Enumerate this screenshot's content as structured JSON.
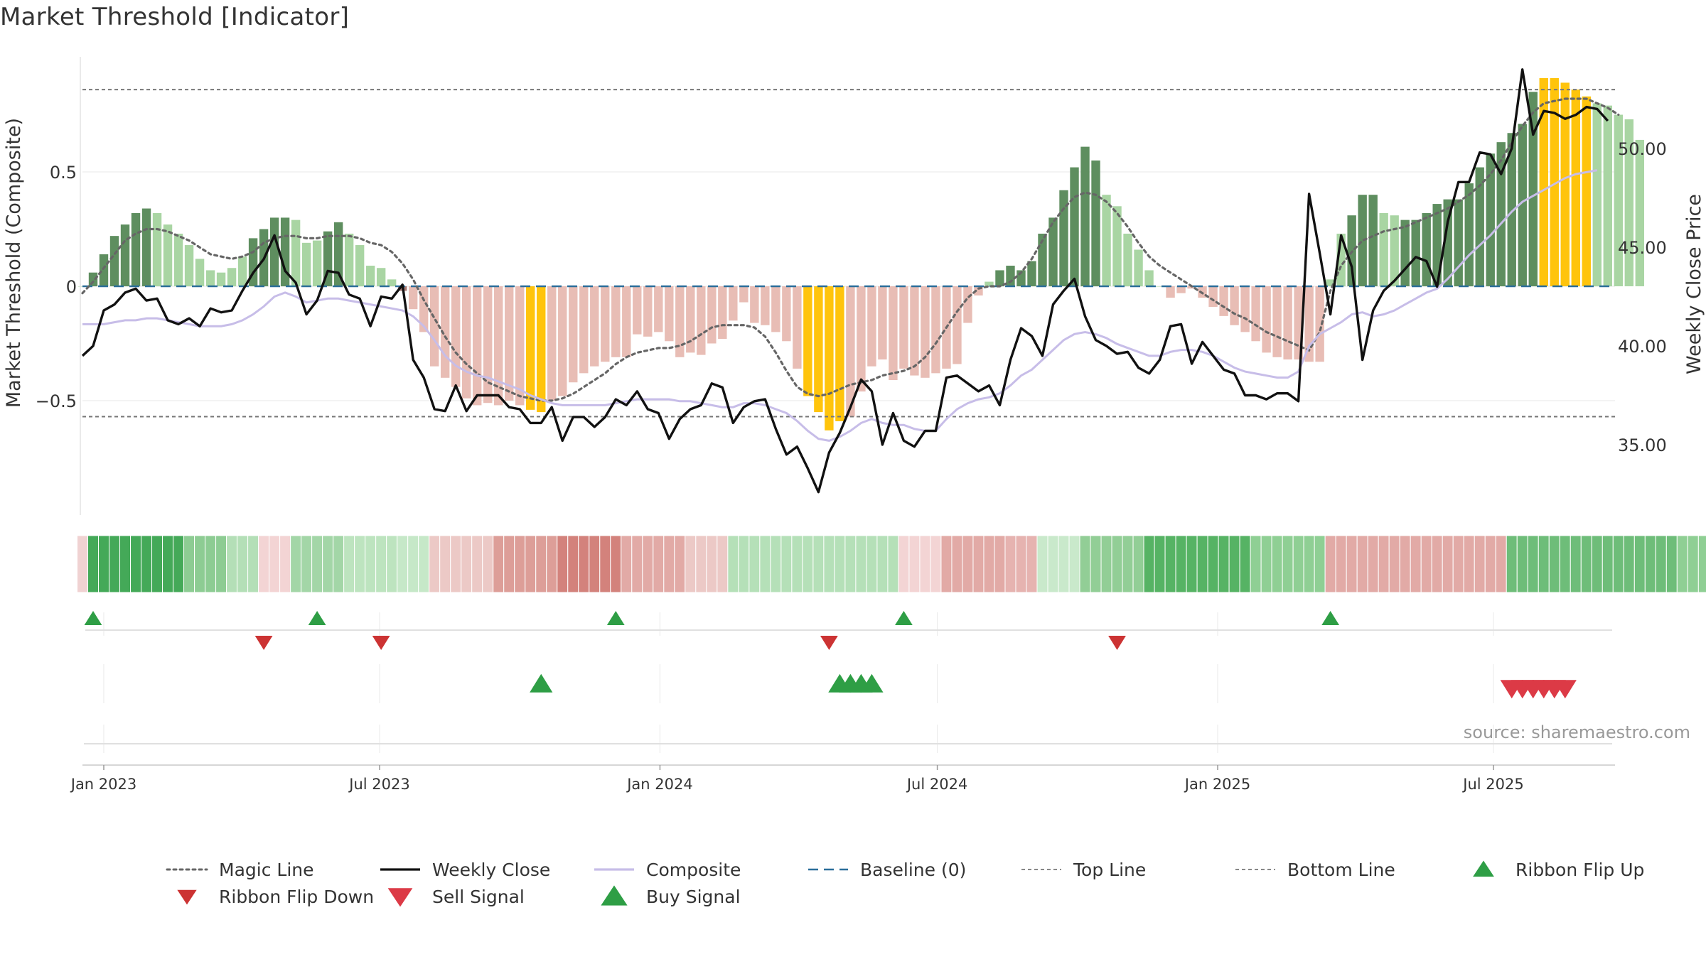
{
  "title": "Market Threshold [Indicator]",
  "source": "source: sharemaestro.com",
  "colors": {
    "strong_pos": "#5e8e5f",
    "weak_pos": "#a9d5a3",
    "strong_neg": "#a87a74",
    "weak_neg": "#e8bdb5",
    "extreme": "#ffc40c",
    "close": "#111111",
    "composite": "#c7bde8",
    "magic": "#666666",
    "baseline": "#2b6e9a",
    "threshold": "#777777",
    "buy": "#2e9e45",
    "sell_flip": "#cc3333",
    "sell": "#dc3a46"
  },
  "chart_data": {
    "type": "bar",
    "title": "Market Threshold [Indicator]",
    "ylabel": "Market Threshold (Composite)",
    "y2label": "Weekly Close Price",
    "ylim": [
      -1.0,
      1.02
    ],
    "y2lim": [
      32.0,
      55.2
    ],
    "y_ticks": [
      "0.5",
      "0",
      "−0.5"
    ],
    "y2_ticks": [
      "50.00",
      "45.00",
      "40.00",
      "35.00"
    ],
    "x_ticks": [
      "Jan 2023",
      "Jul 2023",
      "Jan 2024",
      "Jul 2024",
      "Jan 2025",
      "Jul 2025"
    ],
    "x_tick_dates": [
      "2023-01-01",
      "2023-07-01",
      "2024-01-01",
      "2024-07-01",
      "2025-01-01",
      "2025-07-01"
    ],
    "x_start": "2022-12-18",
    "weekly": {
      "composite": [
        0.0,
        0.06,
        0.14,
        0.22,
        0.27,
        0.32,
        0.34,
        0.32,
        0.27,
        0.23,
        0.18,
        0.12,
        0.07,
        0.06,
        0.08,
        0.13,
        0.21,
        0.25,
        0.3,
        0.3,
        0.29,
        0.19,
        0.2,
        0.24,
        0.28,
        0.23,
        0.18,
        0.09,
        0.08,
        0.03,
        -0.02,
        -0.1,
        -0.2,
        -0.35,
        -0.4,
        -0.44,
        -0.49,
        -0.52,
        -0.51,
        -0.52,
        -0.5,
        -0.52,
        -0.54,
        -0.55,
        -0.5,
        -0.48,
        -0.42,
        -0.38,
        -0.35,
        -0.33,
        -0.31,
        -0.31,
        -0.21,
        -0.22,
        -0.2,
        -0.24,
        -0.31,
        -0.29,
        -0.3,
        -0.25,
        -0.23,
        -0.15,
        -0.07,
        -0.16,
        -0.17,
        -0.2,
        -0.24,
        -0.36,
        -0.48,
        -0.55,
        -0.63,
        -0.59,
        -0.57,
        -0.46,
        -0.35,
        -0.32,
        -0.41,
        -0.36,
        -0.39,
        -0.4,
        -0.38,
        -0.36,
        -0.34,
        -0.16,
        -0.04,
        0.02,
        0.07,
        0.09,
        0.07,
        0.11,
        0.23,
        0.3,
        0.42,
        0.52,
        0.61,
        0.55,
        0.4,
        0.35,
        0.23,
        0.16,
        0.07,
        0.0,
        -0.05,
        -0.03,
        -0.01,
        -0.05,
        -0.09,
        -0.13,
        -0.17,
        -0.2,
        -0.24,
        -0.29,
        -0.31,
        -0.32,
        -0.32,
        -0.33,
        -0.33,
        0.03,
        0.23,
        0.31,
        0.4,
        0.4,
        0.32,
        0.31,
        0.29,
        0.29,
        0.32,
        0.36,
        0.38,
        0.38,
        0.45,
        0.52,
        0.58,
        0.63,
        0.67,
        0.71,
        0.85,
        0.91,
        0.91,
        0.89,
        0.86,
        0.83,
        0.8,
        0.79,
        0.75,
        0.73,
        0.64
      ],
      "close": [
        39.5,
        40.0,
        41.8,
        42.1,
        42.7,
        42.9,
        42.3,
        42.4,
        41.3,
        41.1,
        41.4,
        41.0,
        41.9,
        41.7,
        41.8,
        42.8,
        43.7,
        44.4,
        45.6,
        43.8,
        43.2,
        41.6,
        42.3,
        43.8,
        43.7,
        42.6,
        42.4,
        41.0,
        42.5,
        42.4,
        43.1,
        39.3,
        38.4,
        36.8,
        36.7,
        38.0,
        36.7,
        37.5,
        37.5,
        37.5,
        36.9,
        36.8,
        36.1,
        36.1,
        36.9,
        35.2,
        36.4,
        36.4,
        35.9,
        36.4,
        37.3,
        37.0,
        37.7,
        36.8,
        36.6,
        35.3,
        36.3,
        36.8,
        37.0,
        38.1,
        37.9,
        36.1,
        36.9,
        37.2,
        37.3,
        35.8,
        34.5,
        34.9,
        33.8,
        32.6,
        34.6,
        35.6,
        36.9,
        38.3,
        37.7,
        35.0,
        36.6,
        35.2,
        34.9,
        35.7,
        35.7,
        38.4,
        38.5,
        38.1,
        37.7,
        38.0,
        37.0,
        39.3,
        40.9,
        40.5,
        39.5,
        42.1,
        42.8,
        43.4,
        41.5,
        40.3,
        40.0,
        39.6,
        39.7,
        38.9,
        38.6,
        39.3,
        41.0,
        41.1,
        39.1,
        40.2,
        39.5,
        38.8,
        38.6,
        37.5,
        37.5,
        37.3,
        37.6,
        37.6,
        37.2,
        47.7,
        44.7,
        41.6,
        45.6,
        44.0,
        39.3,
        41.8,
        42.8,
        43.3,
        43.9,
        44.5,
        44.3,
        43.0,
        46.3,
        48.3,
        48.3,
        49.8,
        49.7,
        48.7,
        50.0,
        54.0,
        50.7,
        51.9,
        51.8,
        51.5,
        51.7,
        52.1,
        52.0,
        51.4
      ],
      "composite_smooth": [
        41.1,
        41.1,
        41.1,
        41.2,
        41.3,
        41.3,
        41.4,
        41.4,
        41.3,
        41.2,
        41.1,
        41.0,
        41.0,
        41.0,
        41.1,
        41.3,
        41.6,
        42.0,
        42.5,
        42.7,
        42.5,
        42.2,
        42.3,
        42.4,
        42.4,
        42.3,
        42.2,
        42.1,
        42.0,
        41.9,
        41.8,
        41.5,
        41.0,
        40.3,
        39.5,
        39.0,
        38.7,
        38.5,
        38.4,
        38.2,
        38.0,
        37.8,
        37.5,
        37.3,
        37.1,
        37.0,
        37.0,
        37.0,
        37.0,
        37.0,
        37.1,
        37.2,
        37.3,
        37.3,
        37.3,
        37.3,
        37.2,
        37.2,
        37.1,
        37.0,
        36.9,
        36.9,
        37.1,
        37.1,
        37.0,
        36.8,
        36.6,
        36.2,
        35.7,
        35.3,
        35.2,
        35.4,
        35.7,
        36.1,
        36.3,
        36.1,
        36.0,
        36.0,
        35.8,
        35.7,
        35.7,
        36.3,
        36.8,
        37.1,
        37.3,
        37.4,
        37.6,
        38.0,
        38.5,
        38.8,
        39.3,
        39.8,
        40.3,
        40.6,
        40.7,
        40.6,
        40.4,
        40.1,
        39.9,
        39.7,
        39.5,
        39.5,
        39.7,
        39.8,
        39.8,
        39.7,
        39.5,
        39.2,
        38.9,
        38.7,
        38.6,
        38.5,
        38.4,
        38.4,
        38.7,
        40.0,
        40.6,
        40.9,
        41.2,
        41.6,
        41.7,
        41.5,
        41.6,
        41.8,
        42.1,
        42.4,
        42.7,
        42.9,
        43.4,
        44.0,
        44.6,
        45.1,
        45.6,
        46.2,
        46.8,
        47.3,
        47.6,
        47.9,
        48.2,
        48.5,
        48.7,
        48.8,
        48.9
      ],
      "magic": [
        -0.03,
        0.02,
        0.08,
        0.14,
        0.2,
        0.23,
        0.25,
        0.25,
        0.24,
        0.22,
        0.2,
        0.17,
        0.14,
        0.13,
        0.12,
        0.13,
        0.15,
        0.19,
        0.21,
        0.22,
        0.22,
        0.21,
        0.21,
        0.22,
        0.22,
        0.22,
        0.21,
        0.19,
        0.18,
        0.15,
        0.1,
        0.03,
        -0.06,
        -0.14,
        -0.22,
        -0.29,
        -0.34,
        -0.38,
        -0.42,
        -0.44,
        -0.46,
        -0.48,
        -0.49,
        -0.5,
        -0.5,
        -0.49,
        -0.47,
        -0.44,
        -0.41,
        -0.38,
        -0.34,
        -0.31,
        -0.29,
        -0.28,
        -0.27,
        -0.27,
        -0.26,
        -0.24,
        -0.21,
        -0.18,
        -0.17,
        -0.17,
        -0.17,
        -0.18,
        -0.22,
        -0.29,
        -0.37,
        -0.44,
        -0.47,
        -0.48,
        -0.47,
        -0.45,
        -0.43,
        -0.42,
        -0.41,
        -0.39,
        -0.38,
        -0.37,
        -0.35,
        -0.31,
        -0.25,
        -0.18,
        -0.11,
        -0.05,
        -0.01,
        0.0,
        0.0,
        0.02,
        0.06,
        0.12,
        0.2,
        0.28,
        0.34,
        0.39,
        0.41,
        0.4,
        0.37,
        0.32,
        0.26,
        0.19,
        0.13,
        0.09,
        0.06,
        0.03,
        0.0,
        -0.03,
        -0.06,
        -0.09,
        -0.12,
        -0.14,
        -0.17,
        -0.2,
        -0.22,
        -0.24,
        -0.26,
        -0.28,
        -0.2,
        -0.02,
        0.09,
        0.15,
        0.2,
        0.22,
        0.24,
        0.25,
        0.26,
        0.28,
        0.3,
        0.32,
        0.34,
        0.37,
        0.4,
        0.44,
        0.49,
        0.55,
        0.63,
        0.7,
        0.76,
        0.8,
        0.81,
        0.82,
        0.82,
        0.82,
        0.8,
        0.78,
        0.75
      ],
      "strength": [
        2,
        3,
        3,
        3,
        3,
        3,
        3,
        2,
        2,
        2,
        2,
        2,
        2,
        2,
        2,
        2,
        3,
        3,
        3,
        3,
        2,
        2,
        2,
        3,
        3,
        2,
        2,
        2,
        2,
        2,
        0,
        1,
        1,
        1,
        1,
        1,
        1,
        1,
        1,
        1,
        1,
        1,
        4,
        4,
        1,
        1,
        1,
        1,
        1,
        1,
        1,
        1,
        1,
        1,
        1,
        1,
        1,
        1,
        1,
        1,
        1,
        1,
        1,
        1,
        1,
        1,
        1,
        1,
        4,
        4,
        4,
        4,
        1,
        1,
        1,
        1,
        1,
        1,
        1,
        1,
        1,
        1,
        1,
        1,
        1,
        1,
        3,
        3,
        3,
        3,
        3,
        3,
        3,
        3,
        3,
        3,
        2,
        2,
        2,
        2,
        2,
        1,
        1,
        1,
        1,
        1,
        1,
        1,
        1,
        1,
        1,
        1,
        1,
        1,
        1,
        1,
        1,
        1,
        2,
        3,
        3,
        3,
        2,
        2,
        3,
        3,
        3,
        3,
        3,
        3,
        3,
        3,
        3,
        3,
        3,
        3,
        3,
        4,
        4,
        4,
        4,
        4,
        2,
        2,
        2,
        2,
        2
      ]
    },
    "ribbon": {
      "segments": [
        {
          "n": 1,
          "color": "#f0d2d2"
        },
        {
          "n": 9,
          "color": "#44a958"
        },
        {
          "n": 4,
          "color": "#8dcc93"
        },
        {
          "n": 3,
          "color": "#b4dfb7"
        },
        {
          "n": 3,
          "color": "#f3d4d4"
        },
        {
          "n": 5,
          "color": "#a3d6a7"
        },
        {
          "n": 5,
          "color": "#bde4bf"
        },
        {
          "n": 3,
          "color": "#c6e8c8"
        },
        {
          "n": 6,
          "color": "#ecc9c6"
        },
        {
          "n": 6,
          "color": "#dd9e98"
        },
        {
          "n": 6,
          "color": "#d3827c"
        },
        {
          "n": 6,
          "color": "#e2aaa6"
        },
        {
          "n": 4,
          "color": "#ecc9c6"
        },
        {
          "n": 16,
          "color": "#b5e0b8"
        },
        {
          "n": 4,
          "color": "#f3d4d4"
        },
        {
          "n": 6,
          "color": "#e2aaa6"
        },
        {
          "n": 3,
          "color": "#e6b3b0"
        },
        {
          "n": 4,
          "color": "#c9e9cb"
        },
        {
          "n": 6,
          "color": "#92ce96"
        },
        {
          "n": 10,
          "color": "#56b364"
        },
        {
          "n": 7,
          "color": "#8fcf94"
        },
        {
          "n": 17,
          "color": "#e2aaa6"
        },
        {
          "n": 16,
          "color": "#6ebd79"
        },
        {
          "n": 11,
          "color": "#8fcf94"
        }
      ]
    },
    "signals": {
      "ribbon_flip_up": [
        "2022-12-25",
        "2023-05-21",
        "2023-12-03",
        "2024-06-09",
        "2025-03-16"
      ],
      "ribbon_flip_down": [
        "2023-04-16",
        "2023-07-02",
        "2024-04-21",
        "2024-10-27"
      ],
      "buy_signal": [
        "2023-10-15",
        "2024-04-28",
        "2024-05-05",
        "2024-05-12",
        "2024-05-19"
      ],
      "sell_signal": [
        "2025-07-13",
        "2025-07-20",
        "2025-07-27",
        "2025-08-03",
        "2025-08-10",
        "2025-08-17"
      ]
    },
    "thresholds": {
      "top": 0.86,
      "bottom": -0.57,
      "baseline": 0
    },
    "legend_position": "bottom",
    "legend": [
      {
        "label": "Magic Line",
        "kind": "dotted-line",
        "color": "#666666"
      },
      {
        "label": "Weekly Close",
        "kind": "solid-line",
        "color": "#111111"
      },
      {
        "label": "Composite",
        "kind": "solid-line",
        "color": "#c7bde8"
      },
      {
        "label": "Baseline (0)",
        "kind": "dashed-line",
        "color": "#2b6e9a"
      },
      {
        "label": "Top Line",
        "kind": "thin-dashed",
        "color": "#888888"
      },
      {
        "label": "Bottom Line",
        "kind": "thin-dashed",
        "color": "#888888"
      },
      {
        "label": "Ribbon Flip Up",
        "kind": "triangle-up",
        "color": "#2e9e45"
      },
      {
        "label": "Ribbon Flip Down",
        "kind": "triangle-down",
        "color": "#cc3333"
      },
      {
        "label": "Sell Signal",
        "kind": "triangle-down",
        "color": "#dc3a46"
      },
      {
        "label": "Buy Signal",
        "kind": "triangle-up",
        "color": "#2e9e45"
      }
    ]
  }
}
